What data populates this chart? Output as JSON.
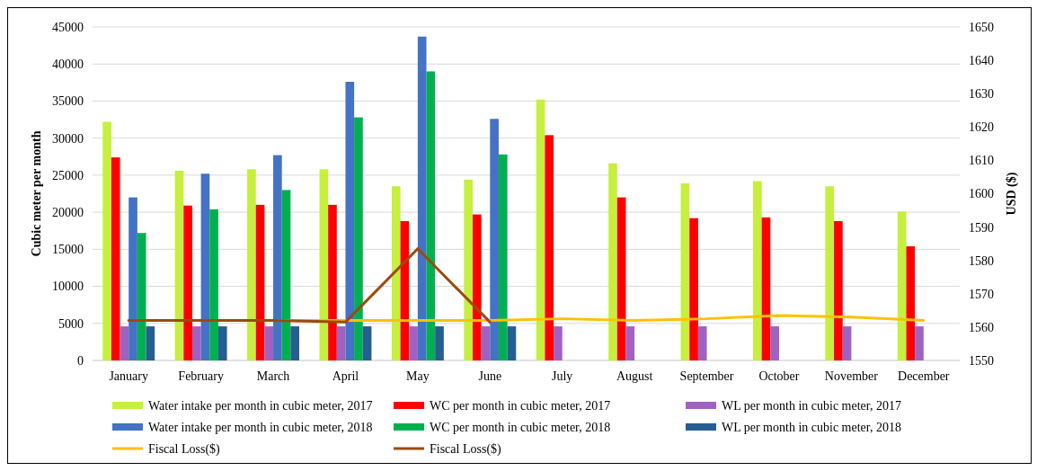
{
  "chart_data": {
    "type": "bar",
    "ylabel": "Cubic meter per month",
    "y2label": "USD ($)",
    "categories": [
      "January",
      "February",
      "March",
      "April",
      "May",
      "June",
      "July",
      "August",
      "September",
      "October",
      "November",
      "December"
    ],
    "series": [
      {
        "name": "Water intake per month in cubic meter, 2017",
        "color": "#c6ef3e",
        "values": [
          32200,
          25600,
          25800,
          25800,
          23500,
          24400,
          35200,
          26600,
          23900,
          24200,
          23500,
          20100
        ]
      },
      {
        "name": "WC per month in cubic meter, 2017",
        "color": "#ff0000",
        "values": [
          27400,
          20900,
          21000,
          21000,
          18800,
          19700,
          30400,
          22000,
          19200,
          19300,
          18800,
          15400
        ]
      },
      {
        "name": "WL per month in cubic meter, 2017",
        "color": "#a062c0",
        "values": [
          4600,
          4600,
          4600,
          4600,
          4600,
          4600,
          4600,
          4600,
          4600,
          4600,
          4600,
          4600
        ]
      },
      {
        "name": "Water intake per month in cubic meter, 2018",
        "color": "#4472c4",
        "values": [
          22000,
          25200,
          27700,
          37600,
          43700,
          32600,
          null,
          null,
          null,
          null,
          null,
          null
        ]
      },
      {
        "name": "WC per month in cubic meter, 2018",
        "color": "#00b050",
        "values": [
          17200,
          20400,
          23000,
          32800,
          39000,
          27800,
          null,
          null,
          null,
          null,
          null,
          null
        ]
      },
      {
        "name": "WL per month in cubic meter, 2018",
        "color": "#255e91",
        "values": [
          4600,
          4600,
          4600,
          4600,
          4600,
          4600,
          null,
          null,
          null,
          null,
          null,
          null
        ]
      },
      {
        "name": "Fiscal Loss($)",
        "type": "line",
        "axis": "y2",
        "color": "#ffc000",
        "values": [
          1562,
          1562,
          1562,
          1562,
          1562,
          1562,
          1562.5,
          1562,
          1562.5,
          1563.5,
          1563,
          1562
        ]
      },
      {
        "name": "Fiscal Loss($)",
        "type": "line",
        "axis": "y2",
        "color": "#9c4a0e",
        "values": [
          1562,
          1562,
          1562,
          1561.5,
          1583.5,
          1561.5,
          null,
          null,
          null,
          null,
          null,
          null
        ]
      }
    ],
    "ylim": [
      0,
      45000
    ],
    "yticks": [
      0,
      5000,
      10000,
      15000,
      20000,
      25000,
      30000,
      35000,
      40000,
      45000
    ],
    "y2lim": [
      1550,
      1650
    ],
    "y2ticks": [
      1550,
      1560,
      1570,
      1580,
      1590,
      1600,
      1610,
      1620,
      1630,
      1640,
      1650
    ],
    "grid": "y",
    "legend": "bottom",
    "marker": "none",
    "line_style": "solid"
  }
}
